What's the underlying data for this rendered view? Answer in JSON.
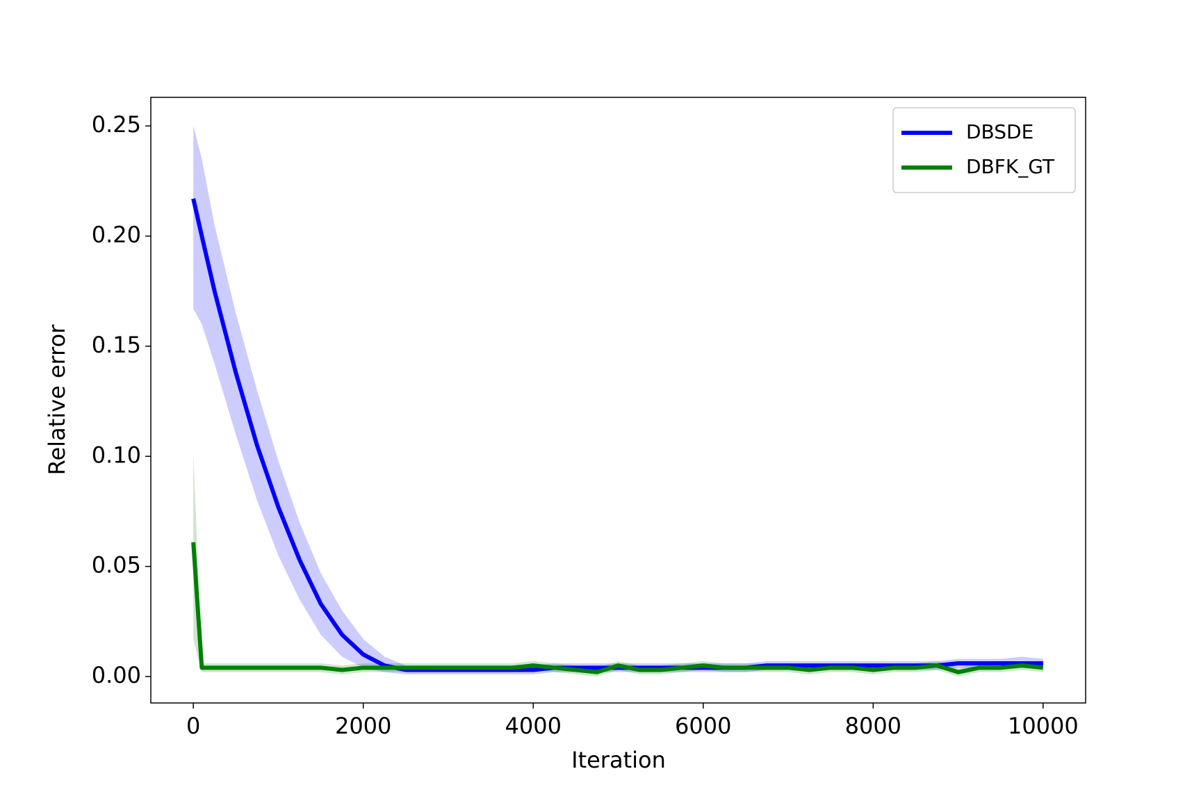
{
  "chart_data": {
    "type": "line",
    "xlabel": "Iteration",
    "ylabel": "Relative error",
    "x": [
      0,
      100,
      250,
      500,
      750,
      1000,
      1250,
      1500,
      1750,
      2000,
      2250,
      2500,
      2750,
      3000,
      3250,
      3500,
      3750,
      4000,
      4250,
      4500,
      4750,
      5000,
      5250,
      5500,
      5750,
      6000,
      6250,
      6500,
      6750,
      7000,
      7250,
      7500,
      7750,
      8000,
      8250,
      8500,
      8750,
      9000,
      9250,
      9500,
      9750,
      10000
    ],
    "series": [
      {
        "name": "DBSDE",
        "color": "#0000ff",
        "values": [
          0.217,
          0.2,
          0.175,
          0.138,
          0.105,
          0.077,
          0.053,
          0.033,
          0.019,
          0.01,
          0.005,
          0.003,
          0.003,
          0.003,
          0.003,
          0.003,
          0.003,
          0.003,
          0.004,
          0.004,
          0.004,
          0.004,
          0.004,
          0.004,
          0.004,
          0.004,
          0.004,
          0.004,
          0.005,
          0.005,
          0.005,
          0.005,
          0.005,
          0.005,
          0.005,
          0.005,
          0.005,
          0.006,
          0.006,
          0.006,
          0.006,
          0.006
        ],
        "upper": [
          0.25,
          0.235,
          0.205,
          0.165,
          0.13,
          0.098,
          0.07,
          0.047,
          0.03,
          0.017,
          0.009,
          0.005,
          0.005,
          0.005,
          0.005,
          0.005,
          0.005,
          0.005,
          0.006,
          0.006,
          0.006,
          0.006,
          0.006,
          0.006,
          0.006,
          0.006,
          0.006,
          0.006,
          0.007,
          0.007,
          0.007,
          0.007,
          0.007,
          0.007,
          0.007,
          0.007,
          0.007,
          0.008,
          0.008,
          0.008,
          0.009,
          0.008
        ],
        "lower": [
          0.167,
          0.16,
          0.142,
          0.11,
          0.08,
          0.055,
          0.035,
          0.019,
          0.009,
          0.004,
          0.002,
          0.001,
          0.001,
          0.001,
          0.001,
          0.001,
          0.001,
          0.001,
          0.002,
          0.002,
          0.002,
          0.002,
          0.002,
          0.002,
          0.002,
          0.002,
          0.002,
          0.002,
          0.003,
          0.003,
          0.003,
          0.003,
          0.003,
          0.003,
          0.003,
          0.003,
          0.003,
          0.004,
          0.004,
          0.004,
          0.004,
          0.004
        ]
      },
      {
        "name": "DBFK_GT",
        "color": "#008000",
        "values": [
          0.061,
          0.004,
          0.004,
          0.004,
          0.004,
          0.004,
          0.004,
          0.004,
          0.003,
          0.004,
          0.004,
          0.004,
          0.004,
          0.004,
          0.004,
          0.004,
          0.004,
          0.005,
          0.004,
          0.003,
          0.002,
          0.005,
          0.003,
          0.003,
          0.004,
          0.005,
          0.004,
          0.004,
          0.004,
          0.004,
          0.003,
          0.004,
          0.004,
          0.003,
          0.004,
          0.004,
          0.005,
          0.002,
          0.004,
          0.004,
          0.005,
          0.004
        ],
        "upper": [
          0.102,
          0.006,
          0.006,
          0.006,
          0.006,
          0.006,
          0.006,
          0.006,
          0.005,
          0.006,
          0.006,
          0.006,
          0.006,
          0.006,
          0.006,
          0.006,
          0.006,
          0.007,
          0.006,
          0.005,
          0.004,
          0.007,
          0.005,
          0.005,
          0.006,
          0.007,
          0.006,
          0.006,
          0.006,
          0.006,
          0.005,
          0.006,
          0.006,
          0.005,
          0.006,
          0.006,
          0.007,
          0.004,
          0.006,
          0.006,
          0.007,
          0.006
        ],
        "lower": [
          0.017,
          0.002,
          0.002,
          0.002,
          0.002,
          0.002,
          0.002,
          0.002,
          0.001,
          0.002,
          0.002,
          0.002,
          0.002,
          0.002,
          0.002,
          0.002,
          0.002,
          0.003,
          0.002,
          0.001,
          0.0,
          0.003,
          0.001,
          0.001,
          0.002,
          0.003,
          0.002,
          0.002,
          0.002,
          0.002,
          0.001,
          0.002,
          0.002,
          0.001,
          0.002,
          0.002,
          0.003,
          0.0,
          0.002,
          0.002,
          0.003,
          0.002
        ]
      }
    ],
    "xlim": [
      -500,
      10500
    ],
    "xticks": [
      0,
      2000,
      4000,
      6000,
      8000,
      10000
    ],
    "ylim": [
      -0.012,
      0.263
    ],
    "yticks": [
      {
        "value": 0,
        "label": "0.00"
      },
      {
        "value": 0.05,
        "label": "0.05"
      },
      {
        "value": 0.1,
        "label": "0.10"
      },
      {
        "value": 0.15,
        "label": "0.15"
      },
      {
        "value": 0.2,
        "label": "0.20"
      },
      {
        "value": 0.25,
        "label": "0.25"
      }
    ],
    "legend": "upper right",
    "grid": false
  }
}
